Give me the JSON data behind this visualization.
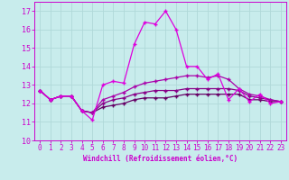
{
  "xlabel": "Windchill (Refroidissement éolien,°C)",
  "background_color": "#c8ecec",
  "grid_color": "#b0d8d8",
  "line_color": "#cc00cc",
  "line_color2": "#990099",
  "xlim": [
    -0.5,
    23.5
  ],
  "ylim": [
    10,
    17.5
  ],
  "yticks": [
    10,
    11,
    12,
    13,
    14,
    15,
    16,
    17
  ],
  "xticks": [
    0,
    1,
    2,
    3,
    4,
    5,
    6,
    7,
    8,
    9,
    10,
    11,
    12,
    13,
    14,
    15,
    16,
    17,
    18,
    19,
    20,
    21,
    22,
    23
  ],
  "series1": [
    12.7,
    12.2,
    12.4,
    12.4,
    11.6,
    11.1,
    13.0,
    13.2,
    13.1,
    15.2,
    16.4,
    16.3,
    17.0,
    16.0,
    14.0,
    14.0,
    13.3,
    13.6,
    12.2,
    12.8,
    12.1,
    12.5,
    12.0,
    12.1
  ],
  "series2": [
    12.7,
    12.2,
    12.4,
    12.4,
    11.6,
    11.5,
    12.2,
    12.4,
    12.6,
    12.9,
    13.1,
    13.2,
    13.3,
    13.4,
    13.5,
    13.5,
    13.4,
    13.5,
    13.3,
    12.8,
    12.5,
    12.4,
    12.2,
    12.1
  ],
  "series3": [
    12.7,
    12.2,
    12.4,
    12.4,
    11.6,
    11.5,
    12.0,
    12.2,
    12.3,
    12.5,
    12.6,
    12.7,
    12.7,
    12.7,
    12.8,
    12.8,
    12.8,
    12.8,
    12.8,
    12.7,
    12.4,
    12.3,
    12.2,
    12.1
  ],
  "series4": [
    12.7,
    12.2,
    12.4,
    12.4,
    11.6,
    11.5,
    11.8,
    11.9,
    12.0,
    12.2,
    12.3,
    12.3,
    12.3,
    12.4,
    12.5,
    12.5,
    12.5,
    12.5,
    12.5,
    12.5,
    12.2,
    12.2,
    12.1,
    12.1
  ]
}
